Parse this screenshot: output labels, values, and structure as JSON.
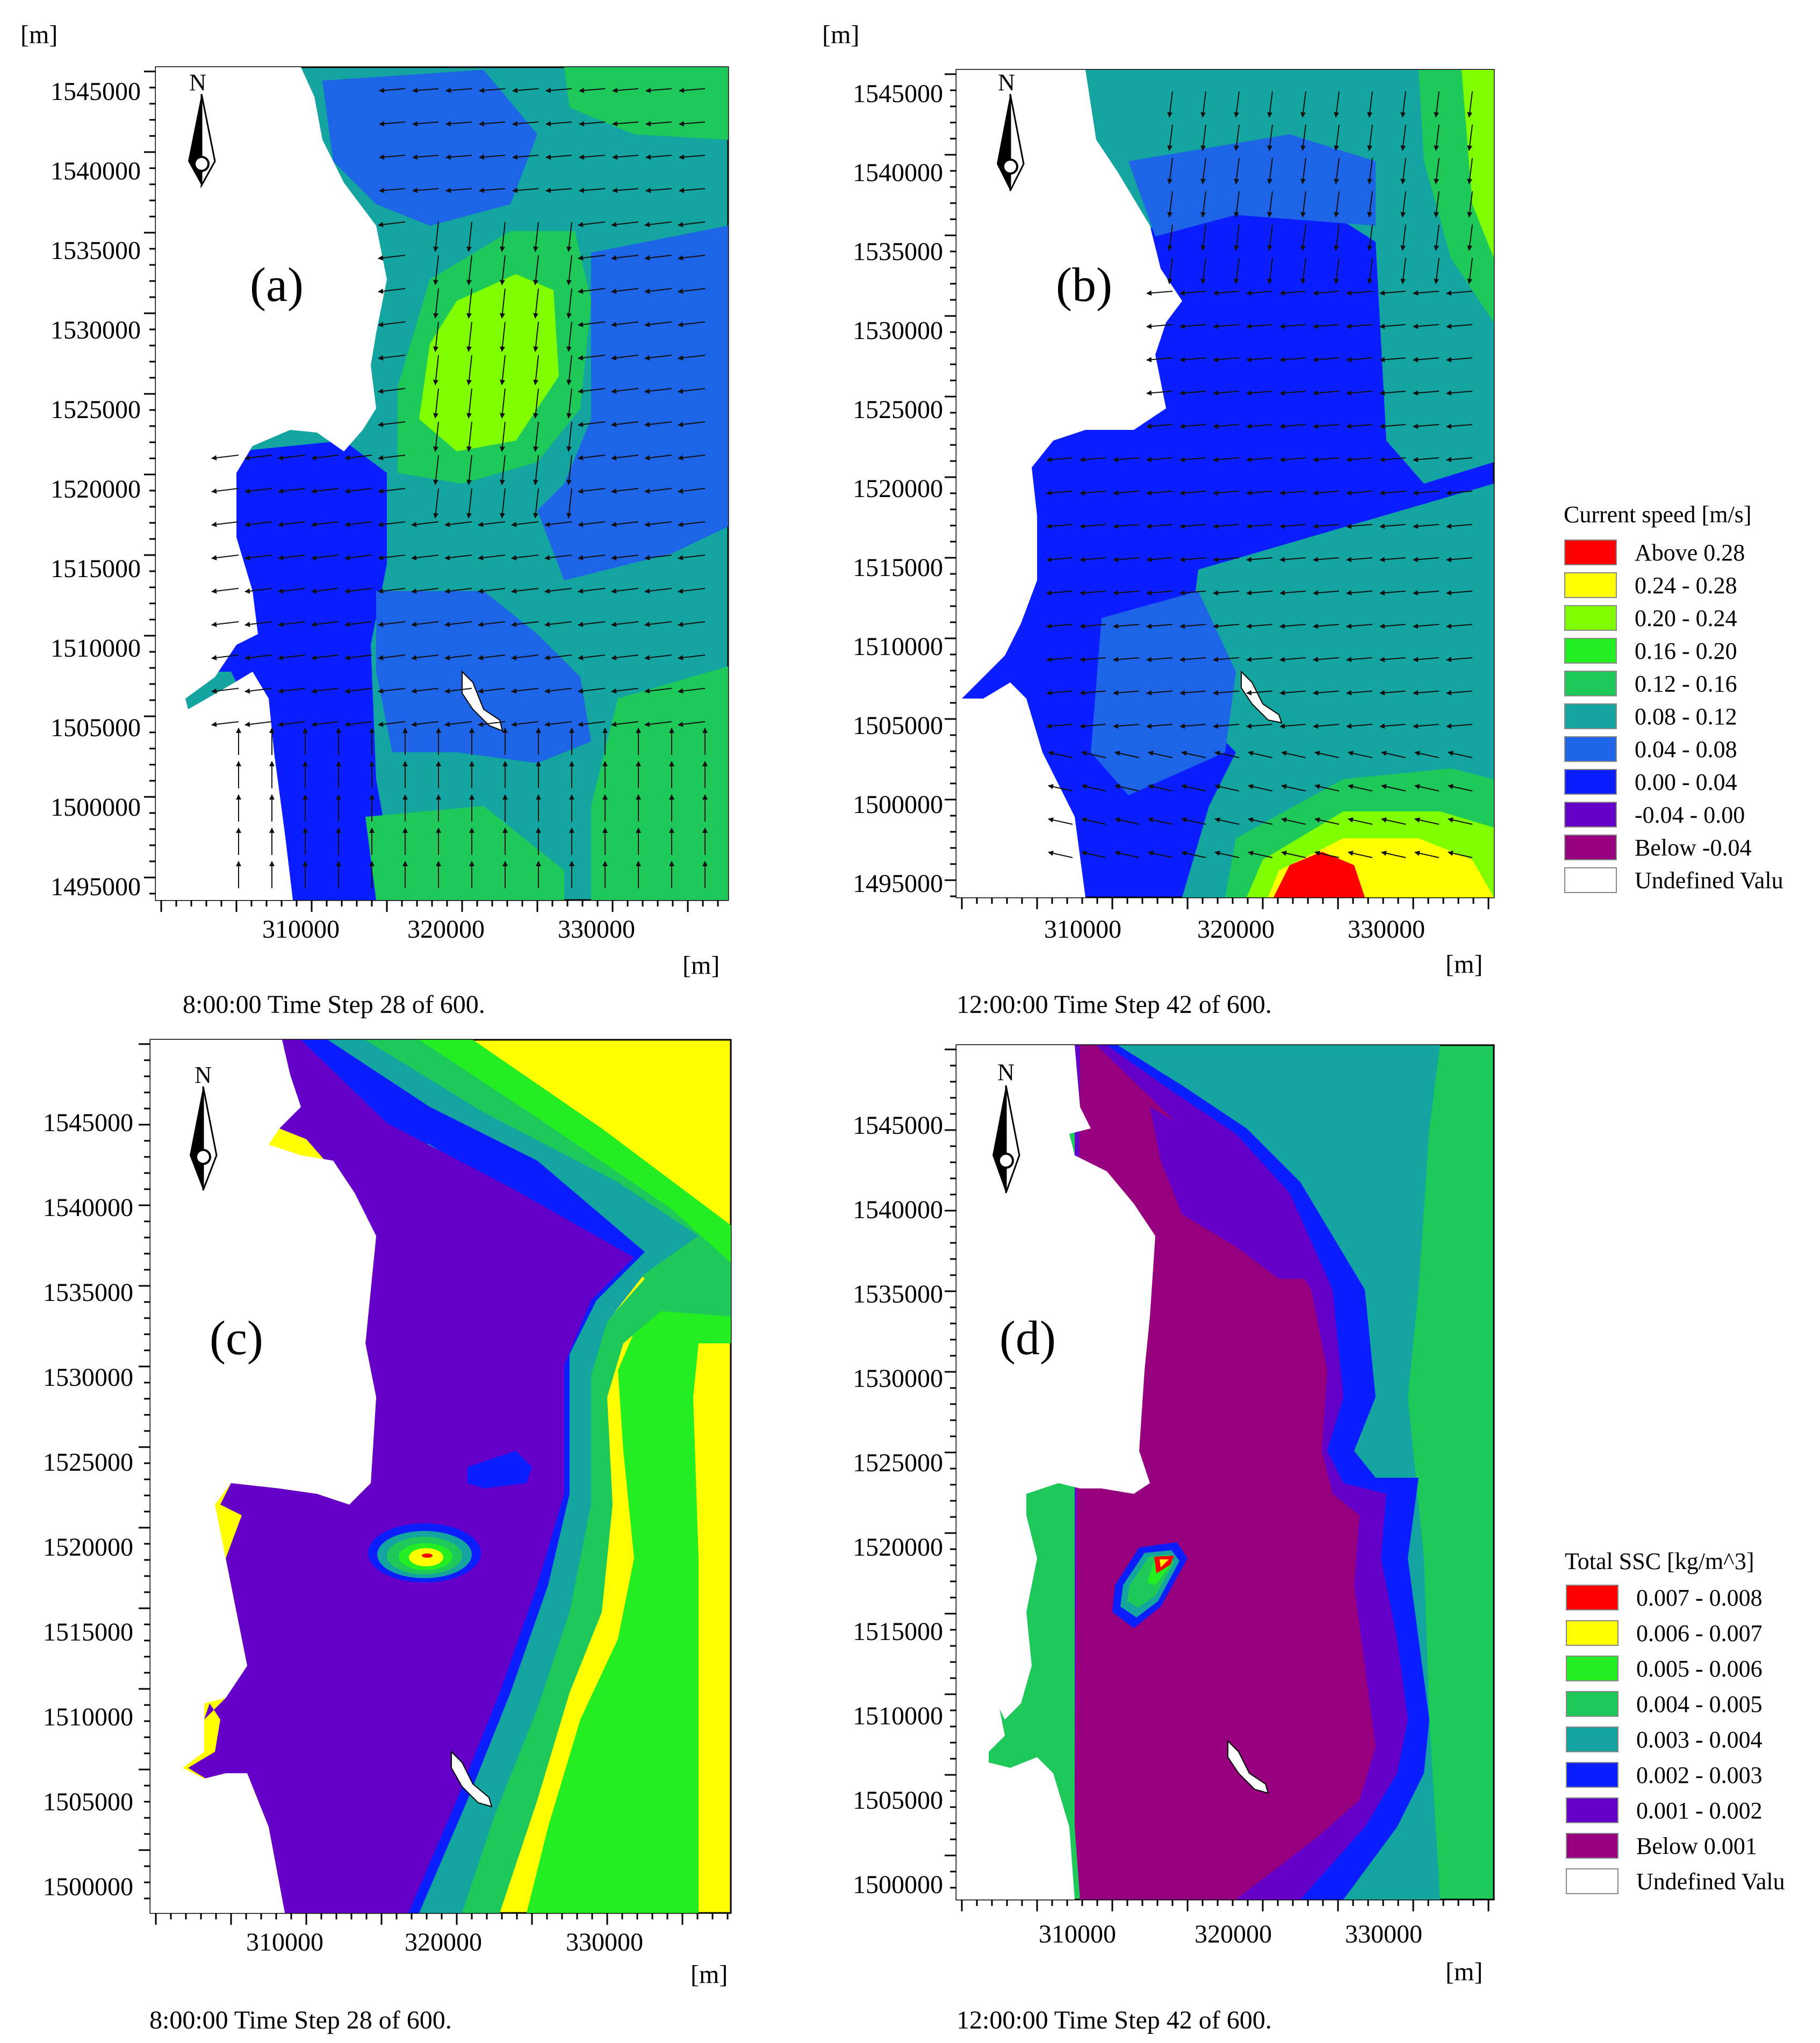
{
  "axis_unit": "[m]",
  "panels": [
    {
      "id": "a",
      "label": "(a)",
      "caption": "8:00:00 Time Step 28 of 600.",
      "x_ticks": [
        "310000",
        "320000",
        "330000"
      ],
      "y_ticks": [
        "1545000",
        "1540000",
        "1535000",
        "1530000",
        "1525000",
        "1520000",
        "1515000",
        "1510000",
        "1505000",
        "1500000",
        "1495000"
      ],
      "north_label": "N"
    },
    {
      "id": "b",
      "label": "(b)",
      "caption": "12:00:00 Time Step 42 of 600.",
      "x_ticks": [
        "310000",
        "320000",
        "330000"
      ],
      "y_ticks": [
        "1545000",
        "1540000",
        "1535000",
        "1530000",
        "1525000",
        "1520000",
        "1515000",
        "1510000",
        "1505000",
        "1500000",
        "1495000"
      ],
      "north_label": "N"
    },
    {
      "id": "c",
      "label": "(c)",
      "caption": "8:00:00 Time Step 28 of 600.",
      "x_ticks": [
        "310000",
        "320000",
        "330000"
      ],
      "y_ticks": [
        "1545000",
        "1540000",
        "1535000",
        "1530000",
        "1525000",
        "1520000",
        "1515000",
        "1510000",
        "1505000",
        "1500000"
      ],
      "north_label": "N"
    },
    {
      "id": "d",
      "label": "(d)",
      "caption": "12:00:00 Time Step 42 of 600.",
      "x_ticks": [
        "310000",
        "320000",
        "330000"
      ],
      "y_ticks": [
        "1545000",
        "1540000",
        "1535000",
        "1530000",
        "1525000",
        "1520000",
        "1515000",
        "1510000",
        "1505000",
        "1500000"
      ],
      "north_label": "N"
    }
  ],
  "legend_speed": {
    "title": "Current speed [m/s]",
    "items": [
      {
        "label": "Above  0.28",
        "color": "#ff0000"
      },
      {
        "label": "0.24 -  0.28",
        "color": "#ffff00"
      },
      {
        "label": "0.20 -  0.24",
        "color": "#7fff00"
      },
      {
        "label": "0.16 -  0.20",
        "color": "#22ee22"
      },
      {
        "label": "0.12 -  0.16",
        "color": "#1ec95a"
      },
      {
        "label": "0.08 -  0.12",
        "color": "#14a5a0"
      },
      {
        "label": "0.04 -  0.08",
        "color": "#1e64e6"
      },
      {
        "label": "0.00 -  0.04",
        "color": "#0a1eff"
      },
      {
        "label": "-0.04 -  0.00",
        "color": "#6400c8"
      },
      {
        "label": "Below -0.04",
        "color": "#96007f"
      },
      {
        "label": "Undefined Valu",
        "color": "#ffffff"
      }
    ]
  },
  "legend_ssc": {
    "title": "Total SSC [kg/m^3]",
    "items": [
      {
        "label": "0.007 - 0.008",
        "color": "#ff0000"
      },
      {
        "label": "0.006 - 0.007",
        "color": "#ffff00"
      },
      {
        "label": "0.005 - 0.006",
        "color": "#22ee22"
      },
      {
        "label": "0.004 - 0.005",
        "color": "#1ec95a"
      },
      {
        "label": "0.003 - 0.004",
        "color": "#14a5a0"
      },
      {
        "label": "0.002 - 0.003",
        "color": "#0a1eff"
      },
      {
        "label": "0.001 - 0.002",
        "color": "#6400c8"
      },
      {
        "label": "Below  0.001",
        "color": "#96007f"
      },
      {
        "label": "Undefined Valu",
        "color": "#ffffff"
      }
    ]
  }
}
